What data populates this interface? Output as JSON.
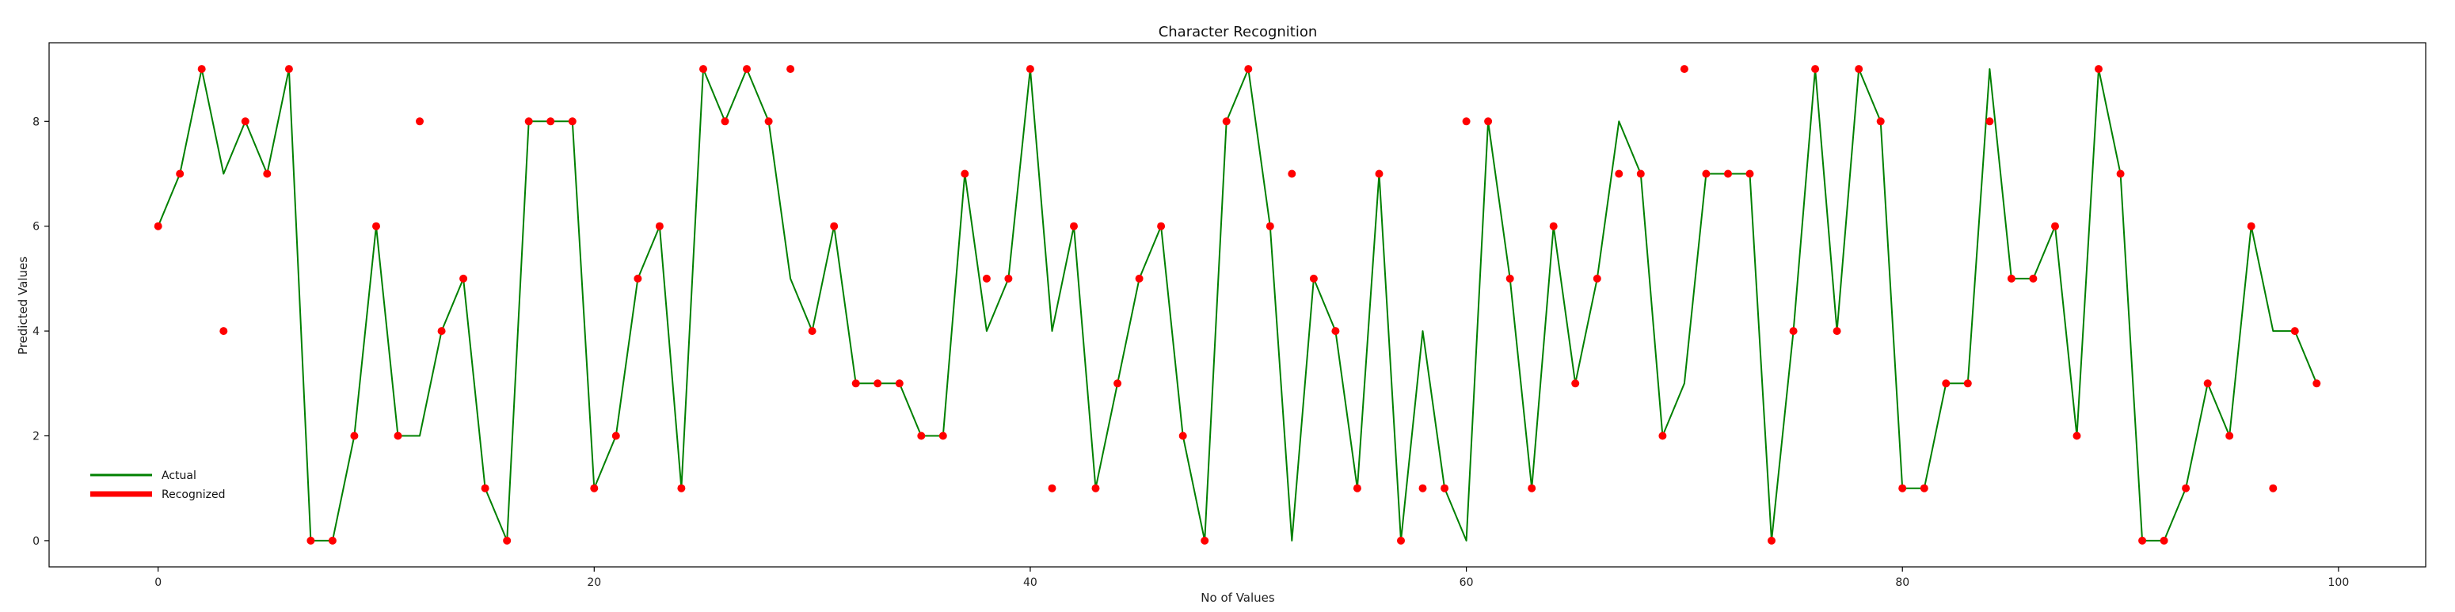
{
  "chart_data": {
    "type": "line",
    "title": "Character Recognition",
    "xlabel": "No of Values",
    "ylabel": "Predicted Values",
    "xlim": [
      -5,
      104
    ],
    "ylim": [
      -0.5,
      9.5
    ],
    "xticks": [
      0,
      20,
      40,
      60,
      80,
      100
    ],
    "yticks": [
      0,
      2,
      4,
      6,
      8
    ],
    "grid": false,
    "legend_position": "lower-left",
    "x": [
      0,
      1,
      2,
      3,
      4,
      5,
      6,
      7,
      8,
      9,
      10,
      11,
      12,
      13,
      14,
      15,
      16,
      17,
      18,
      19,
      20,
      21,
      22,
      23,
      24,
      25,
      26,
      27,
      28,
      29,
      30,
      31,
      32,
      33,
      34,
      35,
      36,
      37,
      38,
      39,
      40,
      41,
      42,
      43,
      44,
      45,
      46,
      47,
      48,
      49,
      50,
      51,
      52,
      53,
      54,
      55,
      56,
      57,
      58,
      59,
      60,
      61,
      62,
      63,
      64,
      65,
      66,
      67,
      68,
      69,
      70,
      71,
      72,
      73,
      74,
      75,
      76,
      77,
      78,
      79,
      80,
      81,
      82,
      83,
      84,
      85,
      86,
      87,
      88,
      89,
      90,
      91,
      92,
      93,
      94,
      95,
      96,
      97,
      98,
      99
    ],
    "series": [
      {
        "name": "Actual",
        "style": "line",
        "color": "#008000",
        "values": [
          6,
          7,
          9,
          7,
          8,
          7,
          9,
          0,
          0,
          2,
          6,
          2,
          2,
          4,
          5,
          1,
          0,
          8,
          8,
          8,
          1,
          2,
          5,
          6,
          1,
          9,
          8,
          9,
          8,
          5,
          4,
          6,
          3,
          3,
          3,
          2,
          2,
          7,
          4,
          5,
          9,
          4,
          6,
          1,
          3,
          5,
          6,
          2,
          0,
          8,
          9,
          6,
          0,
          5,
          4,
          1,
          7,
          0,
          4,
          1,
          0,
          8,
          5,
          1,
          6,
          3,
          5,
          8,
          7,
          2,
          3,
          7,
          7,
          7,
          0,
          4,
          9,
          4,
          9,
          8,
          1,
          1,
          3,
          3,
          9,
          5,
          5,
          6,
          2,
          9,
          7,
          0,
          0,
          1,
          3,
          2,
          6,
          4,
          4,
          3
        ]
      },
      {
        "name": "Recognized",
        "style": "scatter",
        "color": "#ff0000",
        "values": [
          6,
          7,
          9,
          4,
          8,
          7,
          9,
          0,
          0,
          2,
          6,
          2,
          8,
          4,
          5,
          1,
          0,
          8,
          8,
          8,
          1,
          2,
          5,
          6,
          1,
          9,
          8,
          9,
          8,
          9,
          4,
          6,
          3,
          3,
          3,
          2,
          2,
          7,
          5,
          5,
          9,
          1,
          6,
          1,
          3,
          5,
          6,
          2,
          0,
          8,
          9,
          6,
          7,
          5,
          4,
          1,
          7,
          0,
          1,
          1,
          8,
          8,
          5,
          1,
          6,
          3,
          5,
          7,
          7,
          2,
          9,
          7,
          7,
          7,
          0,
          4,
          9,
          4,
          9,
          8,
          1,
          1,
          3,
          3,
          8,
          5,
          5,
          6,
          2,
          9,
          7,
          0,
          0,
          1,
          3,
          2,
          6,
          1,
          4,
          3
        ]
      }
    ]
  }
}
